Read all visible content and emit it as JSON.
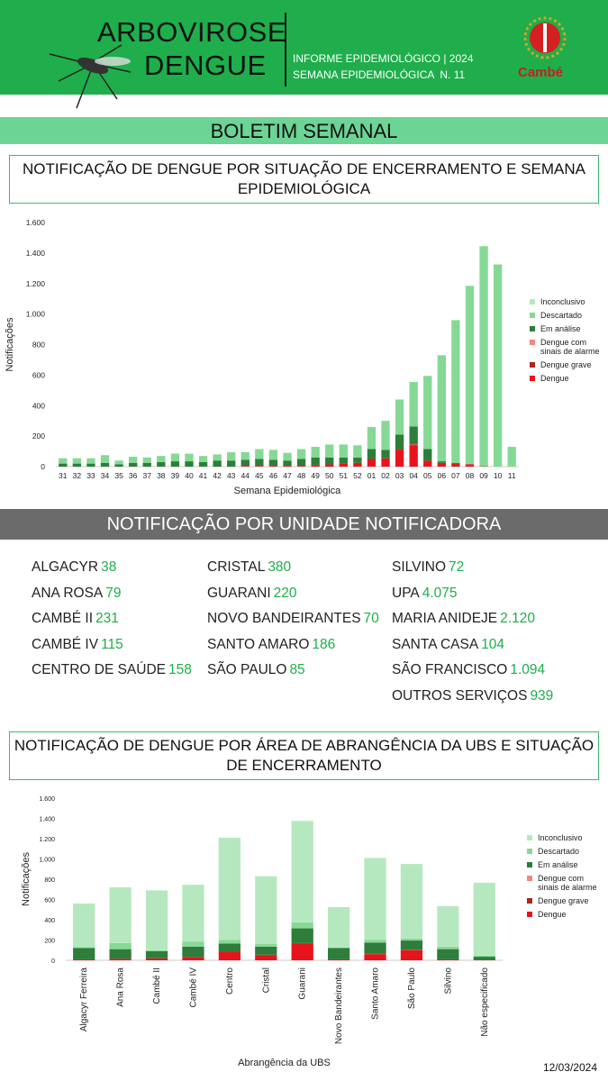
{
  "header": {
    "title_line1": "ARBOVIROSE",
    "title_line2": "DENGUE",
    "info_line1": "INFORME EPIDEMIOLÓGICO | 2024",
    "info_line2": "SEMANA EPIDEMIOLÓGICA  N. 11",
    "logo_text": "Cambé"
  },
  "banner": "BOLETIM SEMANAL",
  "units_title": "NOTIFICAÇÃO POR UNIDADE NOTIFICADORA",
  "units": [
    [
      {
        "name": "ALGACYR",
        "count": "38"
      },
      {
        "name": "ANA ROSA",
        "count": "79"
      },
      {
        "name": "CAMBÉ II",
        "count": "231"
      },
      {
        "name": "CAMBÉ IV",
        "count": "115"
      },
      {
        "name": "CENTRO DE SAÚDE",
        "count": "158"
      }
    ],
    [
      {
        "name": "CRISTAL",
        "count": "380"
      },
      {
        "name": "GUARANI",
        "count": "220"
      },
      {
        "name": "NOVO BANDEIRANTES",
        "count": "70"
      },
      {
        "name": "SANTO AMARO",
        "count": "186"
      },
      {
        "name": "SÃO PAULO",
        "count": "85"
      }
    ],
    [
      {
        "name": "SILVINO",
        "count": "72"
      },
      {
        "name": "UPA",
        "count": "4.075"
      },
      {
        "name": "MARIA ANIDEJE",
        "count": "2.120"
      },
      {
        "name": "SANTA CASA",
        "count": "104"
      },
      {
        "name": "SÃO FRANCISCO",
        "count": "1.094"
      },
      {
        "name": "OUTROS SERVIÇOS",
        "count": "939"
      }
    ]
  ],
  "date": "12/03/2024",
  "chart_data": [
    {
      "type": "stacked_bar",
      "title": "NOTIFICAÇÃO DE DENGUE POR SITUAÇÃO DE ENCERRAMENTO E SEMANA EPIDEMIOLÓGICA",
      "x_label": "Semana Epidemiológica",
      "y_label": "Notificações",
      "categories": [
        "31",
        "32",
        "33",
        "34",
        "35",
        "36",
        "37",
        "38",
        "39",
        "40",
        "41",
        "42",
        "43",
        "44",
        "45",
        "46",
        "47",
        "48",
        "49",
        "50",
        "51",
        "52",
        "01",
        "02",
        "03",
        "04",
        "05",
        "06",
        "07",
        "08",
        "09",
        "10",
        "11"
      ],
      "series": [
        {
          "name": "Dengue",
          "color": "#e8141b",
          "values": [
            0,
            0,
            0,
            0,
            0,
            0,
            0,
            0,
            0,
            0,
            0,
            0,
            0,
            5,
            5,
            5,
            5,
            5,
            10,
            15,
            20,
            25,
            50,
            55,
            110,
            140,
            40,
            25,
            15,
            10,
            2,
            0,
            0
          ]
        },
        {
          "name": "Dengue grave",
          "color": "#b22222",
          "values": [
            0,
            0,
            0,
            0,
            0,
            0,
            0,
            0,
            0,
            0,
            0,
            0,
            0,
            0,
            0,
            0,
            0,
            0,
            0,
            0,
            0,
            0,
            0,
            0,
            5,
            5,
            0,
            0,
            5,
            5,
            0,
            0,
            0
          ]
        },
        {
          "name": "Dengue com sinais de alarme",
          "color": "#f08a80",
          "values": [
            0,
            0,
            0,
            0,
            0,
            0,
            0,
            0,
            0,
            0,
            0,
            0,
            0,
            0,
            0,
            0,
            0,
            0,
            0,
            0,
            0,
            0,
            0,
            0,
            0,
            3,
            0,
            0,
            0,
            3,
            0,
            0,
            0
          ]
        },
        {
          "name": "Em análise",
          "color": "#2e7d3a",
          "values": [
            20,
            20,
            20,
            25,
            15,
            25,
            25,
            30,
            35,
            35,
            30,
            40,
            40,
            40,
            45,
            40,
            35,
            45,
            50,
            45,
            40,
            35,
            65,
            55,
            95,
            115,
            75,
            10,
            5,
            0,
            2,
            0,
            0
          ]
        },
        {
          "name": "Descartado",
          "color": "#86d995",
          "values": [
            35,
            35,
            35,
            50,
            25,
            40,
            35,
            40,
            50,
            50,
            40,
            40,
            55,
            50,
            65,
            65,
            50,
            65,
            70,
            85,
            85,
            80,
            145,
            190,
            230,
            292,
            480,
            695,
            935,
            1167,
            1441,
            1325,
            130
          ]
        },
        {
          "name": "Inconclusivo",
          "color": "#b6e8bf",
          "values": [
            0,
            0,
            0,
            0,
            0,
            0,
            0,
            0,
            0,
            0,
            0,
            0,
            0,
            0,
            0,
            0,
            0,
            0,
            0,
            0,
            0,
            0,
            0,
            0,
            0,
            0,
            0,
            0,
            0,
            0,
            0,
            0,
            0
          ]
        }
      ],
      "ylim": [
        0,
        1600
      ],
      "yticks": [
        0,
        200,
        400,
        600,
        800,
        {
          "value": 1000,
          "label": "1.000"
        },
        {
          "value": 1200,
          "label": "1.200"
        },
        {
          "value": 1400,
          "label": "1.400"
        },
        {
          "value": 1600,
          "label": "1.600"
        }
      ],
      "grid": false
    },
    {
      "type": "stacked_bar",
      "title": "NOTIFICAÇÃO DE DENGUE POR ÁREA DE ABRANGÊNCIA DA UBS E SITUAÇÃO DE ENCERRAMENTO",
      "x_label": "Abrangência da UBS",
      "y_label": "Notificações",
      "categories": [
        "Algacyr Ferreira",
        "Ana Rosa",
        "Cambé II",
        "Cambé IV",
        "Centro",
        "Cristal",
        "Guarani",
        "Novo Bandeirantes",
        "Santo Amaro",
        "São Paulo",
        "Silvino",
        "Não especificado"
      ],
      "series": [
        {
          "name": "Dengue",
          "color": "#e8141b",
          "values": [
            10,
            15,
            20,
            30,
            80,
            50,
            165,
            10,
            60,
            100,
            10,
            5
          ]
        },
        {
          "name": "Dengue grave",
          "color": "#b22222",
          "values": [
            0,
            0,
            0,
            5,
            5,
            5,
            5,
            0,
            5,
            5,
            0,
            0
          ]
        },
        {
          "name": "Dengue com sinais de alarme",
          "color": "#f08a80",
          "values": [
            0,
            0,
            0,
            0,
            0,
            0,
            0,
            0,
            0,
            0,
            0,
            0
          ]
        },
        {
          "name": "Em análise",
          "color": "#2e7d3a",
          "values": [
            110,
            95,
            70,
            100,
            80,
            80,
            145,
            110,
            110,
            90,
            100,
            30
          ]
        },
        {
          "name": "Descartado",
          "color": "#86d995",
          "values": [
            10,
            60,
            10,
            50,
            35,
            25,
            60,
            5,
            25,
            20,
            25,
            10
          ]
        },
        {
          "name": "Inconclusivo",
          "color": "#b6e8bf",
          "values": [
            430,
            550,
            590,
            560,
            1010,
            670,
            1000,
            400,
            810,
            735,
            400,
            720
          ]
        }
      ],
      "ylim": [
        0,
        1600
      ],
      "yticks": [
        0,
        200,
        400,
        600,
        800,
        {
          "value": 1000,
          "label": "1.000"
        },
        {
          "value": 1200,
          "label": "1.200"
        },
        {
          "value": 1400,
          "label": "1.400"
        },
        {
          "value": 1600,
          "label": "1.600"
        }
      ],
      "grid": false
    }
  ]
}
